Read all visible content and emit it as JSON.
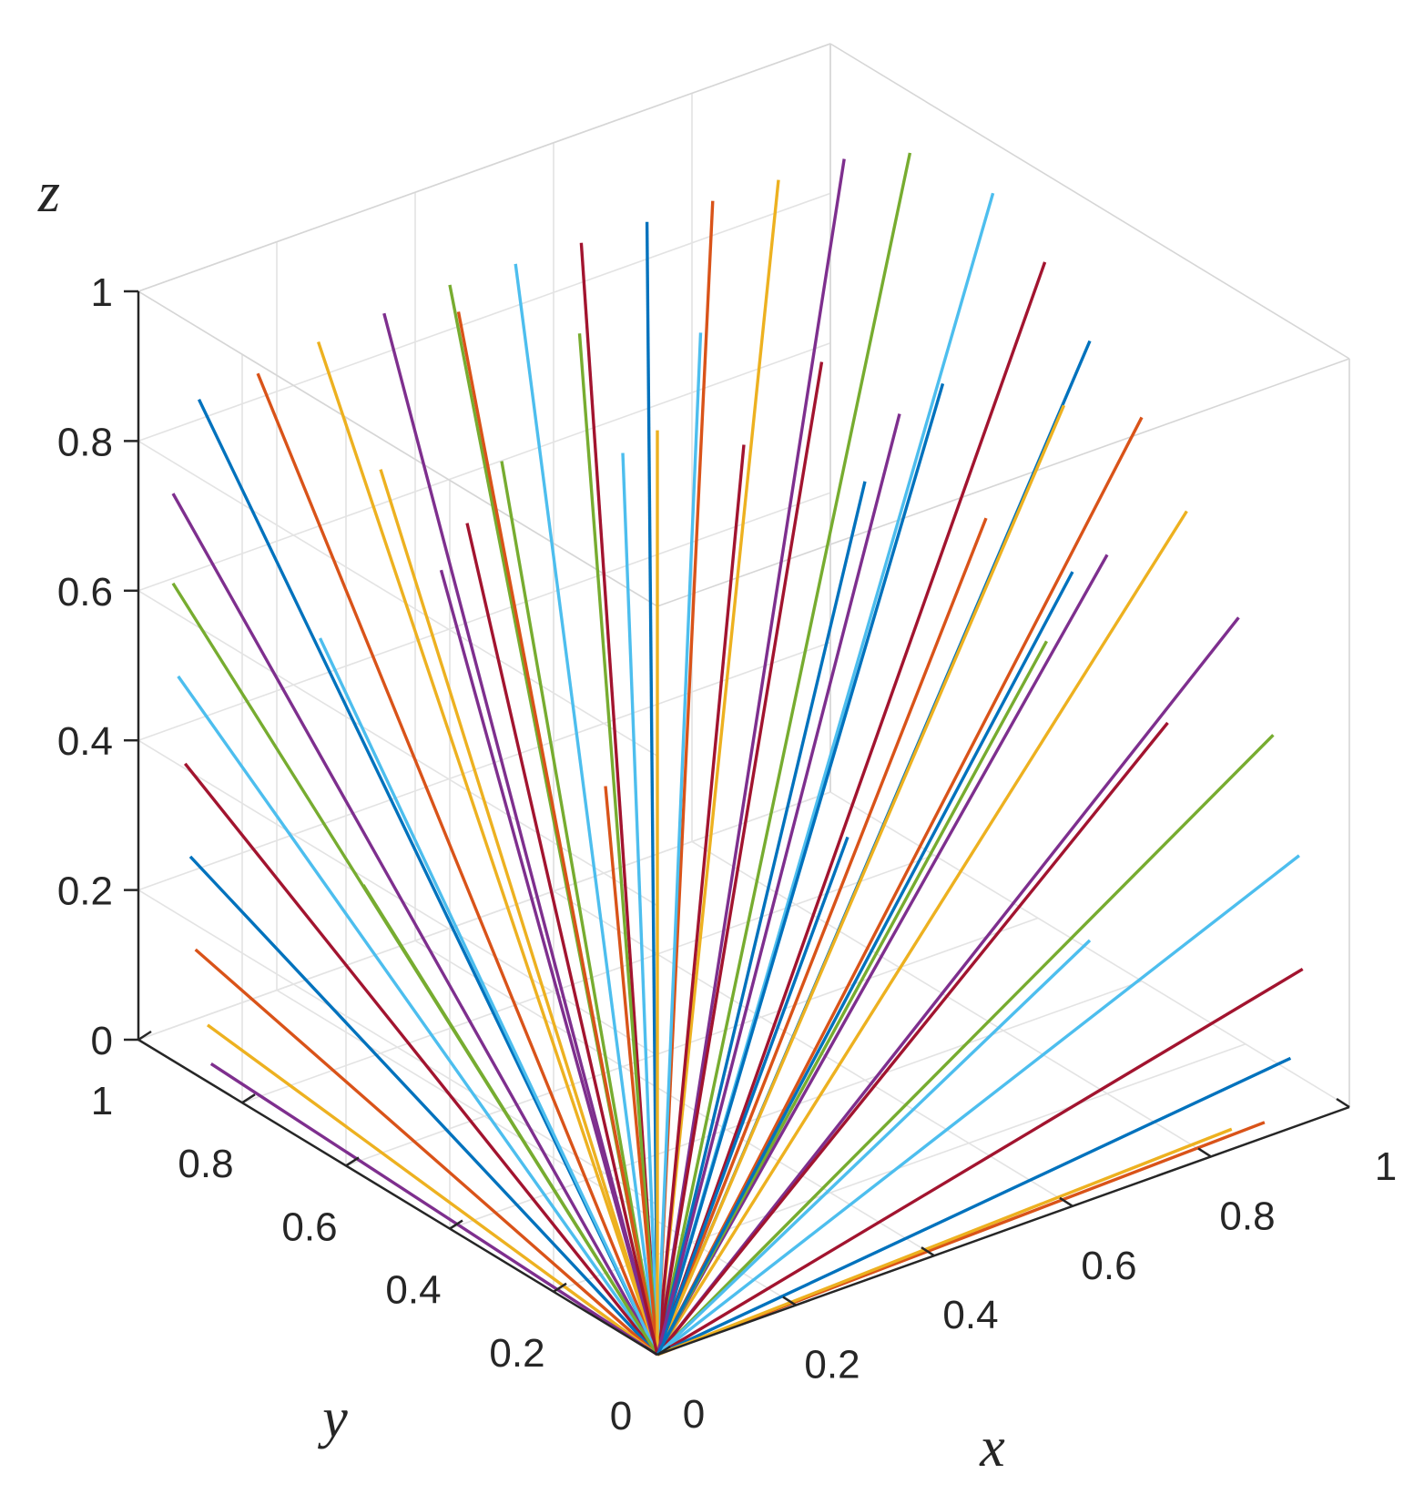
{
  "chart_data": {
    "type": "line",
    "chart_kind": "3d-line",
    "title": "",
    "xlabel": "x",
    "ylabel": "y",
    "zlabel": "z",
    "xlim": [
      0,
      1
    ],
    "ylim": [
      0,
      1
    ],
    "zlim": [
      0,
      1
    ],
    "grid": true,
    "legend": "none",
    "x_ticks": [
      "0",
      "0.2",
      "0.4",
      "0.6",
      "0.8",
      "1"
    ],
    "y_ticks": [
      "0",
      "0.2",
      "0.4",
      "0.6",
      "0.8",
      "1"
    ],
    "z_ticks": [
      "0",
      "0.2",
      "0.4",
      "0.6",
      "0.8",
      "1"
    ],
    "origin": [
      0,
      0,
      0
    ],
    "series_colors": [
      "#0072BD",
      "#D95319",
      "#EDB120",
      "#7E2F8E",
      "#77AC30",
      "#4DBEEE",
      "#A2142F"
    ],
    "ray_endpoints": [
      [
        0.05,
        0.95,
        0.86
      ],
      [
        0.12,
        0.93,
        0.88
      ],
      [
        0.2,
        0.92,
        0.9
      ],
      [
        0.28,
        0.9,
        0.92
      ],
      [
        0.36,
        0.88,
        0.94
      ],
      [
        0.44,
        0.86,
        0.95
      ],
      [
        0.52,
        0.84,
        0.96
      ],
      [
        0.6,
        0.82,
        0.97
      ],
      [
        0.68,
        0.8,
        0.98
      ],
      [
        0.76,
        0.78,
        0.99
      ],
      [
        0.84,
        0.76,
        1.0
      ],
      [
        0.92,
        0.74,
        0.99
      ],
      [
        0.98,
        0.66,
        0.95
      ],
      [
        0.98,
        0.56,
        0.9
      ],
      [
        0.97,
        0.46,
        0.84
      ],
      [
        0.97,
        0.36,
        0.78
      ],
      [
        0.96,
        0.26,
        0.7
      ],
      [
        0.96,
        0.16,
        0.6
      ],
      [
        0.95,
        0.08,
        0.48
      ],
      [
        0.95,
        0.03,
        0.34
      ],
      [
        0.94,
        0.01,
        0.2
      ],
      [
        0.93,
        0.02,
        0.08
      ],
      [
        0.9,
        0.03,
        0.0
      ],
      [
        0.86,
        0.04,
        0.0
      ],
      [
        0.02,
        0.96,
        0.74
      ],
      [
        0.02,
        0.96,
        0.62
      ],
      [
        0.02,
        0.95,
        0.5
      ],
      [
        0.03,
        0.95,
        0.38
      ],
      [
        0.03,
        0.94,
        0.26
      ],
      [
        0.03,
        0.93,
        0.14
      ],
      [
        0.04,
        0.92,
        0.04
      ],
      [
        0.03,
        0.9,
        0.0
      ],
      [
        0.3,
        0.7,
        0.8
      ],
      [
        0.4,
        0.6,
        0.82
      ],
      [
        0.5,
        0.5,
        0.84
      ],
      [
        0.6,
        0.4,
        0.8
      ],
      [
        0.7,
        0.3,
        0.76
      ],
      [
        0.2,
        0.8,
        0.78
      ],
      [
        0.8,
        0.2,
        0.72
      ],
      [
        0.45,
        0.75,
        0.9
      ],
      [
        0.55,
        0.65,
        0.91
      ],
      [
        0.65,
        0.55,
        0.88
      ],
      [
        0.75,
        0.45,
        0.86
      ],
      [
        0.35,
        0.85,
        0.92
      ],
      [
        0.85,
        0.35,
        0.84
      ],
      [
        0.25,
        0.75,
        0.65
      ],
      [
        0.75,
        0.25,
        0.6
      ],
      [
        0.15,
        0.85,
        0.55
      ],
      [
        0.85,
        0.15,
        0.5
      ],
      [
        0.5,
        0.3,
        0.4
      ],
      [
        0.3,
        0.5,
        0.45
      ],
      [
        0.6,
        0.8,
        0.7
      ],
      [
        0.8,
        0.6,
        0.74
      ],
      [
        0.1,
        0.7,
        0.3
      ],
      [
        0.7,
        0.1,
        0.28
      ],
      [
        0.4,
        0.9,
        0.6
      ],
      [
        0.9,
        0.4,
        0.58
      ]
    ]
  }
}
